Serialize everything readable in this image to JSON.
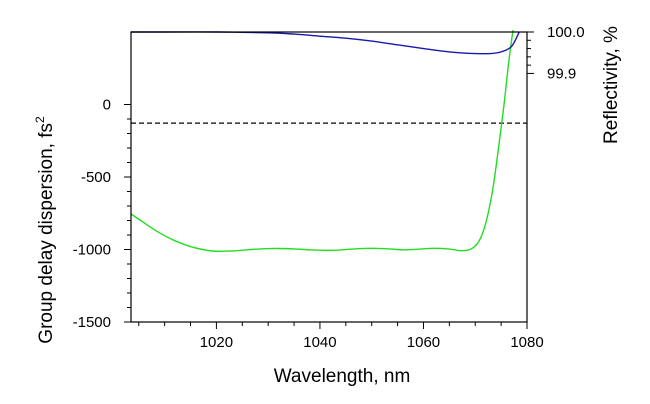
{
  "chart_data": {
    "type": "line",
    "title": "",
    "xlabel": "Wavelength, nm",
    "ylabel_left": {
      "text": "Group delay dispersion, fs",
      "superscript": "2"
    },
    "ylabel_right": "Reflectivity, %",
    "x_ticks": [
      1020,
      1040,
      1060,
      1080
    ],
    "x_tick_labels": [
      "1020",
      "1040",
      "1060",
      "1080"
    ],
    "xlim": [
      1003.5,
      1080
    ],
    "ylim_left": [
      -1500,
      500
    ],
    "y_ticks_left": [
      0,
      -500,
      -1000,
      -1500
    ],
    "y_tick_labels_left": [
      "0",
      "-500",
      "-1000",
      "-1500"
    ],
    "ylim_right": [
      99.3,
      100.0
    ],
    "y_ticks_right": [
      100.0,
      99.9
    ],
    "y_tick_labels_right": [
      "100.0",
      "99.9"
    ],
    "reference_line": {
      "axis": "right",
      "y": 99.78,
      "style": "dashed",
      "color": "#000000"
    },
    "grid": false,
    "legend": "none",
    "series": [
      {
        "axis": "left",
        "color": "#22dd22",
        "x": [
          1003.5,
          1006,
          1009,
          1012,
          1015,
          1018,
          1020,
          1023,
          1026,
          1029,
          1032,
          1035,
          1038,
          1041,
          1044,
          1047,
          1050,
          1053,
          1056,
          1059,
          1062,
          1065,
          1067,
          1068.5,
          1069.5,
          1070.5,
          1071.5,
          1072.5,
          1073.5,
          1074.5,
          1075.5,
          1076.5,
          1077.5,
          1078.3
        ],
        "y": [
          -755,
          -815,
          -885,
          -940,
          -980,
          -1005,
          -1012,
          -1010,
          -1002,
          -995,
          -993,
          -996,
          -1002,
          -1006,
          -1003,
          -995,
          -992,
          -995,
          -1002,
          -998,
          -992,
          -997,
          -1008,
          -1005,
          -990,
          -955,
          -880,
          -750,
          -560,
          -300,
          -20,
          300,
          560,
          710
        ]
      },
      {
        "axis": "right",
        "color": "#1a1aaa",
        "x": [
          1003.5,
          1010,
          1020,
          1030,
          1035,
          1040,
          1045,
          1050,
          1055,
          1060,
          1065,
          1070,
          1073,
          1075,
          1077,
          1078.5
        ],
        "y": [
          100.0,
          100.0,
          100.0,
          99.998,
          99.995,
          99.99,
          99.985,
          99.978,
          99.969,
          99.96,
          99.952,
          99.948,
          99.948,
          99.952,
          99.965,
          100.0
        ]
      }
    ]
  }
}
